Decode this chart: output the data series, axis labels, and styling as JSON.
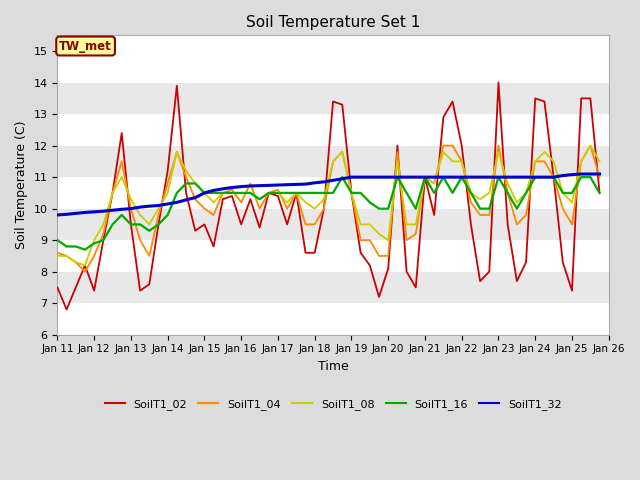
{
  "title": "Soil Temperature Set 1",
  "xlabel": "Time",
  "ylabel": "Soil Temperature (C)",
  "ylim": [
    6.0,
    15.5
  ],
  "yticks": [
    6.0,
    7.0,
    8.0,
    9.0,
    10.0,
    11.0,
    12.0,
    13.0,
    14.0,
    15.0
  ],
  "fig_bg_color": "#dcdcdc",
  "plot_bg_color": "#ffffff",
  "annotation_label": "TW_met",
  "annotation_bg": "#ffff99",
  "annotation_border": "#8b0000",
  "series": {
    "SoilT1_02": {
      "color": "#cc0000",
      "lw": 1.3,
      "x": [
        11,
        11.25,
        11.5,
        11.75,
        12,
        12.25,
        12.5,
        12.75,
        13,
        13.25,
        13.5,
        13.75,
        14,
        14.25,
        14.5,
        14.75,
        15,
        15.25,
        15.5,
        15.75,
        16,
        16.25,
        16.5,
        16.75,
        17,
        17.25,
        17.5,
        17.75,
        18,
        18.25,
        18.5,
        18.75,
        19,
        19.25,
        19.5,
        19.75,
        20,
        20.25,
        20.5,
        20.75,
        21,
        21.25,
        21.5,
        21.75,
        22,
        22.25,
        22.5,
        22.75,
        23,
        23.25,
        23.5,
        23.75,
        24,
        24.25,
        24.5,
        24.75,
        25,
        25.25,
        25.5,
        25.75
      ],
      "y": [
        7.5,
        6.8,
        7.5,
        8.2,
        7.4,
        9.0,
        10.5,
        12.4,
        9.5,
        7.4,
        7.6,
        9.5,
        11.2,
        13.9,
        10.5,
        9.3,
        9.5,
        8.8,
        10.3,
        10.4,
        9.5,
        10.3,
        9.4,
        10.5,
        10.4,
        9.5,
        10.5,
        8.6,
        8.6,
        10.0,
        13.4,
        13.3,
        10.5,
        8.6,
        8.2,
        7.2,
        8.1,
        12.0,
        8.0,
        7.5,
        11.0,
        9.8,
        12.9,
        13.4,
        12.0,
        9.5,
        7.7,
        8.0,
        14.0,
        9.5,
        7.7,
        8.3,
        13.5,
        13.4,
        11.0,
        8.3,
        7.4,
        13.5,
        13.5,
        10.5
      ]
    },
    "SoilT1_04": {
      "color": "#ff8800",
      "lw": 1.3,
      "x": [
        11,
        11.25,
        11.5,
        11.75,
        12,
        12.25,
        12.5,
        12.75,
        13,
        13.25,
        13.5,
        13.75,
        14,
        14.25,
        14.5,
        14.75,
        15,
        15.25,
        15.5,
        15.75,
        16,
        16.25,
        16.5,
        16.75,
        17,
        17.25,
        17.5,
        17.75,
        18,
        18.25,
        18.5,
        18.75,
        19,
        19.25,
        19.5,
        19.75,
        20,
        20.25,
        20.5,
        20.75,
        21,
        21.25,
        21.5,
        21.75,
        22,
        22.25,
        22.5,
        22.75,
        23,
        23.25,
        23.5,
        23.75,
        24,
        24.25,
        24.5,
        24.75,
        25,
        25.25,
        25.5,
        25.75
      ],
      "y": [
        8.6,
        8.5,
        8.3,
        8.0,
        8.5,
        9.2,
        10.5,
        11.5,
        10.0,
        9.0,
        8.5,
        9.8,
        10.8,
        11.8,
        11.0,
        10.3,
        10.0,
        9.8,
        10.5,
        10.6,
        10.2,
        10.8,
        10.0,
        10.5,
        10.6,
        10.0,
        10.5,
        9.5,
        9.5,
        10.0,
        11.5,
        11.8,
        10.5,
        9.0,
        9.0,
        8.5,
        8.5,
        11.8,
        9.0,
        9.2,
        11.0,
        10.8,
        12.0,
        12.0,
        11.5,
        10.2,
        9.8,
        9.8,
        12.0,
        10.5,
        9.5,
        9.8,
        11.5,
        11.5,
        11.0,
        10.0,
        9.5,
        11.5,
        12.0,
        11.0
      ]
    },
    "SoilT1_08": {
      "color": "#cccc00",
      "lw": 1.3,
      "x": [
        11,
        11.25,
        11.5,
        11.75,
        12,
        12.25,
        12.5,
        12.75,
        13,
        13.25,
        13.5,
        13.75,
        14,
        14.25,
        14.5,
        14.75,
        15,
        15.25,
        15.5,
        15.75,
        16,
        16.25,
        16.5,
        16.75,
        17,
        17.25,
        17.5,
        17.75,
        18,
        18.25,
        18.5,
        18.75,
        19,
        19.25,
        19.5,
        19.75,
        20,
        20.25,
        20.5,
        20.75,
        21,
        21.25,
        21.5,
        21.75,
        22,
        22.25,
        22.5,
        22.75,
        23,
        23.25,
        23.5,
        23.75,
        24,
        24.25,
        24.5,
        24.75,
        25,
        25.25,
        25.5,
        25.75
      ],
      "y": [
        8.5,
        8.5,
        8.3,
        8.2,
        9.0,
        9.5,
        10.5,
        11.0,
        10.3,
        9.8,
        9.5,
        10.0,
        10.5,
        11.8,
        11.2,
        10.8,
        10.5,
        10.2,
        10.5,
        10.5,
        10.5,
        10.5,
        10.3,
        10.5,
        10.5,
        10.2,
        10.5,
        10.2,
        10.0,
        10.3,
        11.5,
        11.8,
        10.5,
        9.5,
        9.5,
        9.2,
        9.0,
        11.5,
        9.5,
        9.5,
        11.0,
        10.8,
        11.8,
        11.5,
        11.5,
        10.5,
        10.3,
        10.5,
        11.8,
        10.8,
        10.2,
        10.5,
        11.5,
        11.8,
        11.5,
        10.5,
        10.2,
        11.5,
        12.0,
        11.5
      ]
    },
    "SoilT1_16": {
      "color": "#00aa00",
      "lw": 1.6,
      "x": [
        11,
        11.25,
        11.5,
        11.75,
        12,
        12.25,
        12.5,
        12.75,
        13,
        13.25,
        13.5,
        13.75,
        14,
        14.25,
        14.5,
        14.75,
        15,
        15.25,
        15.5,
        15.75,
        16,
        16.25,
        16.5,
        16.75,
        17,
        17.25,
        17.5,
        17.75,
        18,
        18.25,
        18.5,
        18.75,
        19,
        19.25,
        19.5,
        19.75,
        20,
        20.25,
        20.5,
        20.75,
        21,
        21.25,
        21.5,
        21.75,
        22,
        22.25,
        22.5,
        22.75,
        23,
        23.25,
        23.5,
        23.75,
        24,
        24.25,
        24.5,
        24.75,
        25,
        25.25,
        25.5,
        25.75
      ],
      "y": [
        9.0,
        8.8,
        8.8,
        8.7,
        8.9,
        9.0,
        9.5,
        9.8,
        9.5,
        9.5,
        9.3,
        9.5,
        9.8,
        10.5,
        10.8,
        10.8,
        10.5,
        10.5,
        10.5,
        10.5,
        10.5,
        10.5,
        10.3,
        10.5,
        10.5,
        10.5,
        10.5,
        10.5,
        10.5,
        10.5,
        10.5,
        11.0,
        10.5,
        10.5,
        10.2,
        10.0,
        10.0,
        11.0,
        10.5,
        10.0,
        11.0,
        10.5,
        11.0,
        10.5,
        11.0,
        10.5,
        10.0,
        10.0,
        11.0,
        10.5,
        10.0,
        10.5,
        11.0,
        11.0,
        11.0,
        10.5,
        10.5,
        11.0,
        11.0,
        10.5
      ]
    },
    "SoilT1_32": {
      "color": "#0000cc",
      "lw": 2.2,
      "x": [
        11,
        11.25,
        11.5,
        11.75,
        12,
        12.25,
        12.5,
        12.75,
        13,
        13.25,
        13.5,
        13.75,
        14,
        14.25,
        14.5,
        14.75,
        15,
        15.25,
        15.5,
        15.75,
        16,
        16.25,
        16.5,
        16.75,
        17,
        17.25,
        17.5,
        17.75,
        18,
        18.25,
        18.5,
        18.75,
        19,
        19.25,
        19.5,
        19.75,
        20,
        20.25,
        20.5,
        20.75,
        21,
        21.25,
        21.5,
        21.75,
        22,
        22.25,
        22.5,
        22.75,
        23,
        23.25,
        23.5,
        23.75,
        24,
        24.25,
        24.5,
        24.75,
        25,
        25.25,
        25.5,
        25.75
      ],
      "y": [
        9.8,
        9.82,
        9.85,
        9.88,
        9.9,
        9.92,
        9.95,
        9.98,
        10.0,
        10.05,
        10.08,
        10.1,
        10.15,
        10.2,
        10.28,
        10.35,
        10.5,
        10.58,
        10.63,
        10.67,
        10.7,
        10.72,
        10.73,
        10.74,
        10.75,
        10.76,
        10.77,
        10.78,
        10.82,
        10.85,
        10.9,
        10.95,
        11.0,
        11.0,
        11.0,
        11.0,
        11.0,
        11.0,
        11.0,
        11.0,
        11.0,
        11.0,
        11.0,
        11.0,
        11.0,
        11.0,
        11.0,
        11.0,
        11.0,
        11.0,
        11.0,
        11.0,
        11.0,
        11.0,
        11.0,
        11.05,
        11.08,
        11.1,
        11.1,
        11.1
      ]
    }
  },
  "legend_order": [
    "SoilT1_02",
    "SoilT1_04",
    "SoilT1_08",
    "SoilT1_16",
    "SoilT1_32"
  ],
  "xtick_positions": [
    11,
    12,
    13,
    14,
    15,
    16,
    17,
    18,
    19,
    20,
    21,
    22,
    23,
    24,
    25,
    26
  ],
  "xtick_labels": [
    "Jan 11",
    "Jan 12",
    "Jan 13",
    "Jan 14",
    "Jan 15",
    "Jan 16",
    "Jan 17",
    "Jan 18",
    "Jan 19",
    "Jan 20",
    "Jan 21",
    "Jan 22",
    "Jan 23",
    "Jan 24",
    "Jan 25",
    "Jan 26"
  ],
  "stripe_colors": [
    "#ffffff",
    "#e8e8e8"
  ]
}
